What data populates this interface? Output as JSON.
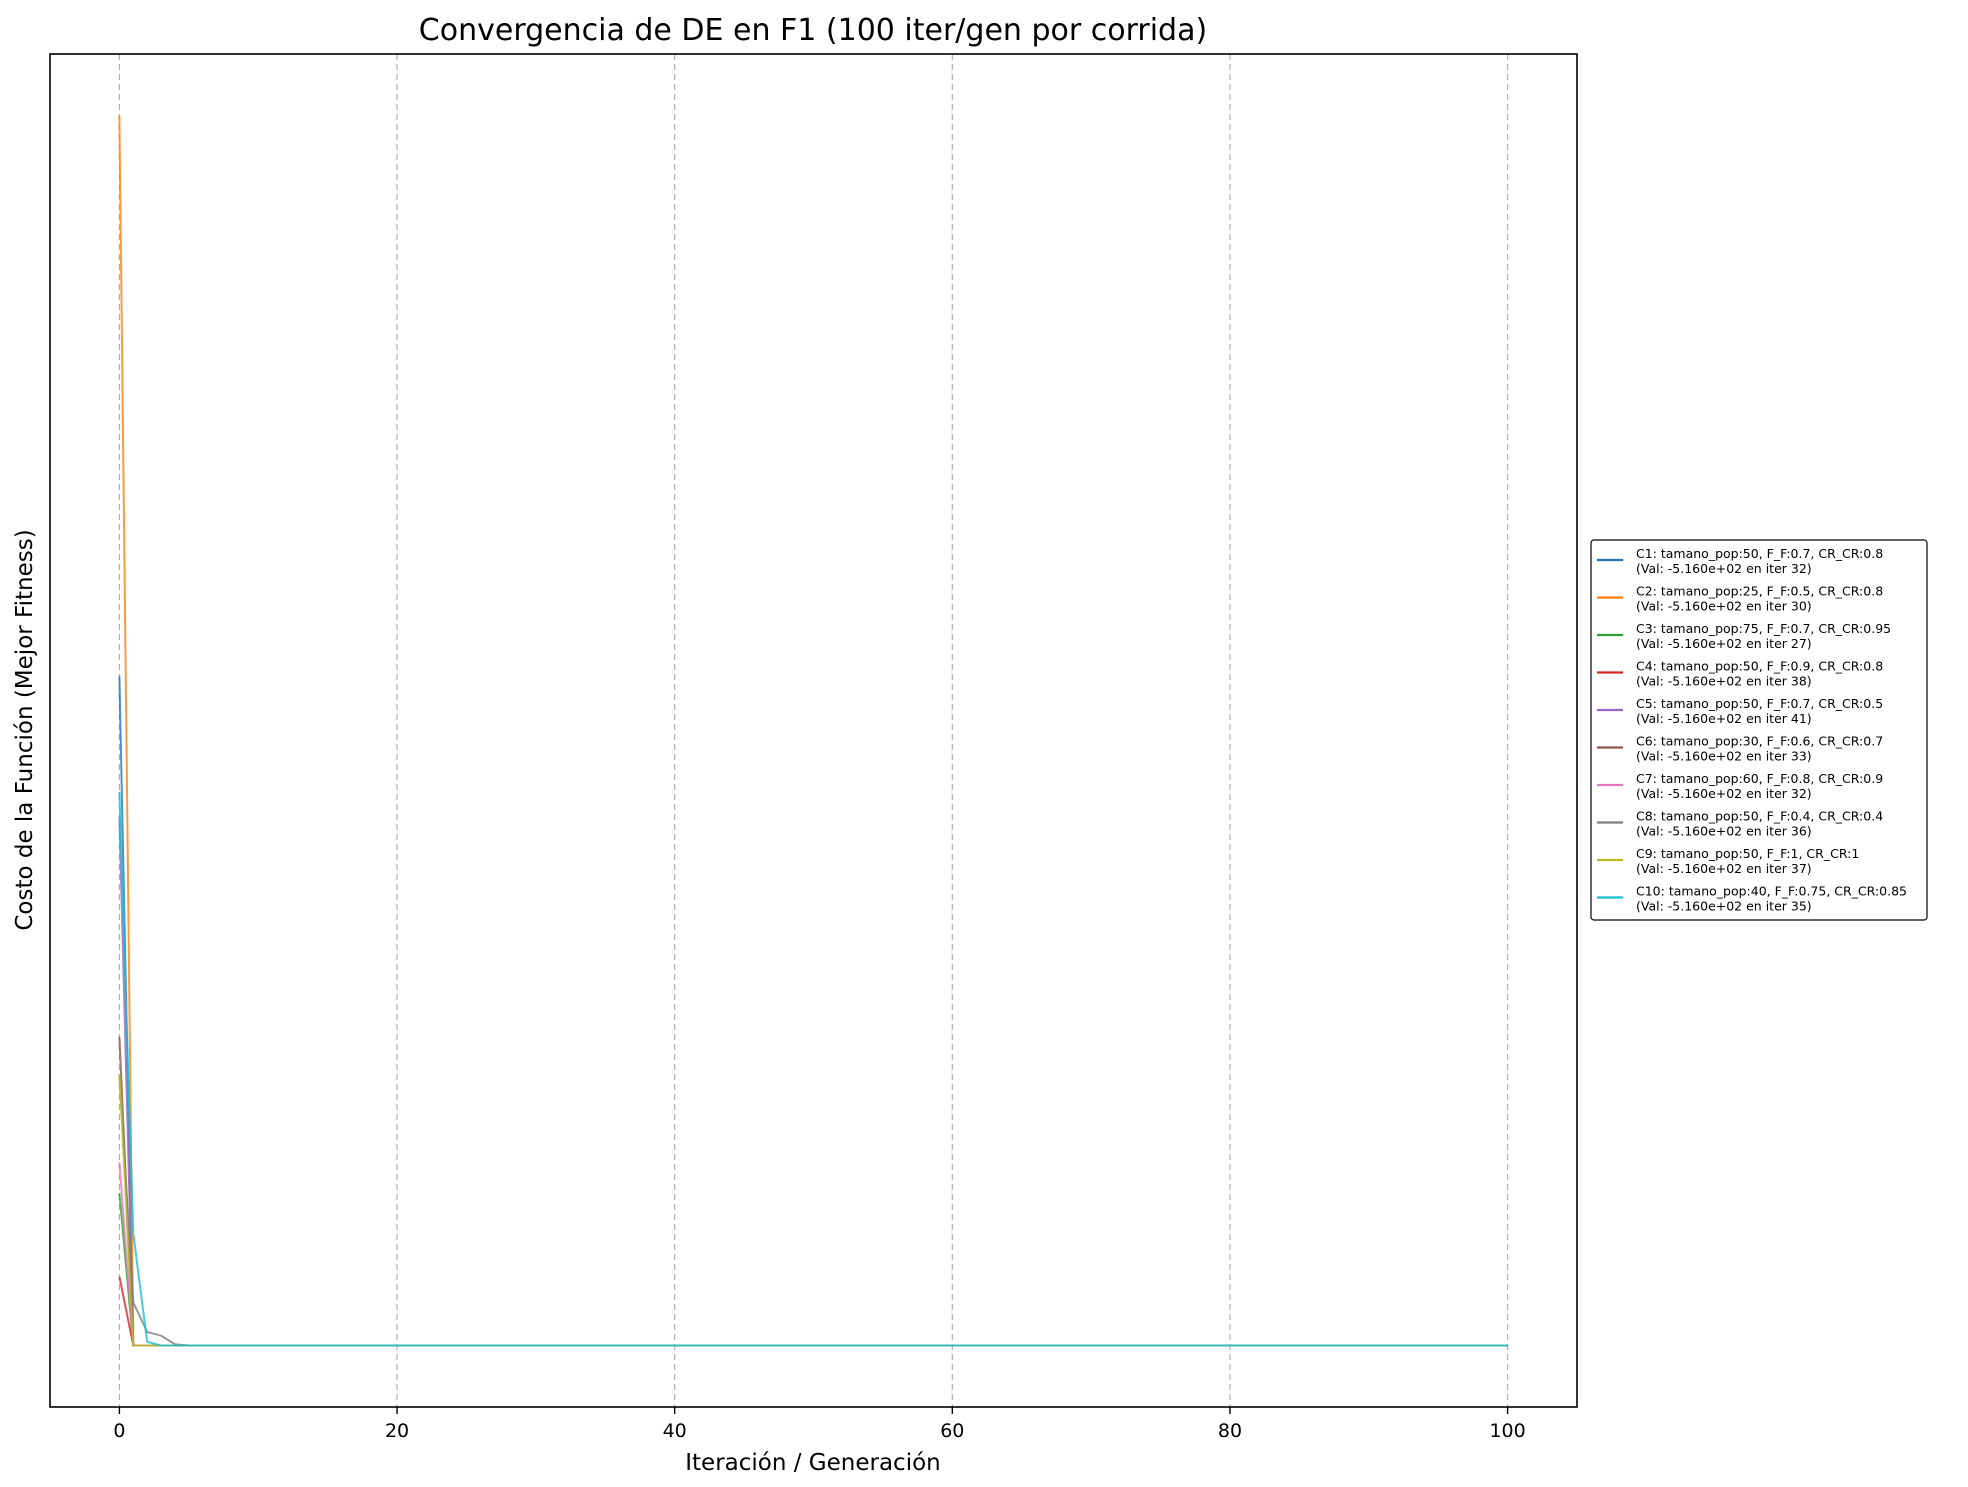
{
  "chart_data": {
    "type": "line",
    "title": "Convergencia de DE en F1 (100 iter/gen por corrida)",
    "xlabel": "Iteración / Generación",
    "ylabel": "Costo de la Función (Mejor Fitness)",
    "xlim": [
      -5,
      105
    ],
    "ylim": [
      -0.05,
      1.05
    ],
    "x_ticks": [
      0,
      20,
      40,
      60,
      80,
      100
    ],
    "x_tick_labels": [
      "0",
      "20",
      "40",
      "60",
      "80",
      "100"
    ],
    "y_ticks_visible": false,
    "grid": "x-only dashed",
    "legend_position": "outside right",
    "series": [
      {
        "name": "C1: tamano_pop:50, F_F:0.7, CR_CR:0.8",
        "note": "(Val: -5.160e+02 en iter 32)",
        "color": "#1f77b4",
        "x": [
          0,
          1,
          2,
          100
        ],
        "y": [
          0.544,
          0.0,
          0.0,
          0.0
        ]
      },
      {
        "name": "C2: tamano_pop:25, F_F:0.5, CR_CR:0.8",
        "note": "(Val: -5.160e+02 en iter 30)",
        "color": "#ff7f0e",
        "x": [
          0,
          1,
          2,
          100
        ],
        "y": [
          1.0,
          0.0,
          0.0,
          0.0
        ]
      },
      {
        "name": "C3: tamano_pop:75, F_F:0.7, CR_CR:0.95",
        "note": "(Val: -5.160e+02 en iter 27)",
        "color": "#2ca02c",
        "x": [
          0,
          1,
          2,
          100
        ],
        "y": [
          0.124,
          0.0,
          0.0,
          0.0
        ]
      },
      {
        "name": "C4: tamano_pop:50, F_F:0.9, CR_CR:0.8",
        "note": "(Val: -5.160e+02 en iter 38)",
        "color": "#d62728",
        "x": [
          0,
          1,
          2,
          100
        ],
        "y": [
          0.056,
          0.0,
          0.0,
          0.0
        ]
      },
      {
        "name": "C5: tamano_pop:50, F_F:0.7, CR_CR:0.5",
        "note": "(Val: -5.160e+02 en iter 41)",
        "color": "#9467bd",
        "x": [
          0,
          1,
          2,
          100
        ],
        "y": [
          0.43,
          0.0,
          0.0,
          0.0
        ]
      },
      {
        "name": "C6: tamano_pop:30, F_F:0.6, CR_CR:0.7",
        "note": "(Val: -5.160e+02 en iter 33)",
        "color": "#8c564b",
        "x": [
          0,
          1,
          2,
          100
        ],
        "y": [
          0.251,
          0.0,
          0.0,
          0.0
        ]
      },
      {
        "name": "C7: tamano_pop:60, F_F:0.8, CR_CR:0.9",
        "note": "(Val: -5.160e+02 en iter 32)",
        "color": "#e377c2",
        "x": [
          0,
          1,
          2,
          100
        ],
        "y": [
          0.149,
          0.0,
          0.0,
          0.0
        ]
      },
      {
        "name": "C8: tamano_pop:50, F_F:0.4, CR_CR:0.4",
        "note": "(Val: -5.160e+02 en iter 36)",
        "color": "#7f7f7f",
        "x": [
          0,
          1,
          2,
          3,
          4,
          5,
          100
        ],
        "y": [
          0.22,
          0.035,
          0.011,
          0.008,
          0.001,
          0.0,
          0.0
        ]
      },
      {
        "name": "C9: tamano_pop:50, F_F:1, CR_CR:1",
        "note": "(Val: -5.160e+02 en iter 37)",
        "color": "#bcbd22",
        "x": [
          0,
          1,
          2,
          100
        ],
        "y": [
          0.22,
          0.0,
          0.0,
          0.0
        ]
      },
      {
        "name": "C10: tamano_pop:40, F_F:0.75, CR_CR:0.85",
        "note": "(Val: -5.160e+02 en iter 35)",
        "color": "#17becf",
        "x": [
          0,
          1,
          2,
          3,
          100
        ],
        "y": [
          0.45,
          0.091,
          0.003,
          0.0,
          0.0
        ]
      }
    ]
  }
}
